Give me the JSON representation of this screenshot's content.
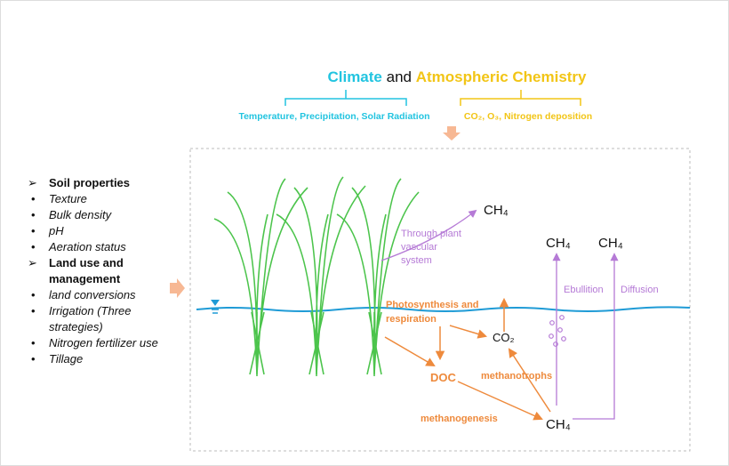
{
  "header": {
    "title_parts": [
      "Climate",
      "and",
      "Atmospheric Chemistry"
    ],
    "climate_factors": "Temperature, Precipitation, Solar Radiation",
    "chemistry_factors": "CO₂, O₃, Nitrogen deposition"
  },
  "sidebar": {
    "groups": [
      {
        "heading": "Soil properties",
        "items": [
          "Texture",
          "Bulk density",
          "pH",
          "Aeration status"
        ]
      },
      {
        "heading": "Land use and management",
        "items": [
          "land conversions",
          "Irrigation (Three strategies)",
          "Nitrogen fertilizer use",
          "Tillage"
        ]
      }
    ]
  },
  "diagram": {
    "plant_ch4": "CH₄",
    "plant_path": [
      "Through plant",
      "vascular",
      "system"
    ],
    "ebullition_ch4": "CH₄",
    "diffusion_ch4": "CH₄",
    "ebullition": "Ebullition",
    "diffusion": "Diffusion",
    "photosynthesis": [
      "Photosynthesis and",
      "respiration"
    ],
    "co2": "CO₂",
    "doc": "DOC",
    "methanotrophs": "methanotrophs",
    "methanogenesis": "methanogenesis",
    "soil_ch4": "CH₄"
  }
}
